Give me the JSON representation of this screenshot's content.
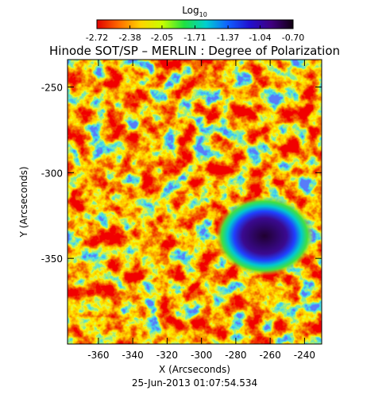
{
  "chart_data": {
    "type": "image",
    "title": "Hinode SOT/SP – MERLIN : Degree of Polarization",
    "colorbar": {
      "label": "Log",
      "label_subscript": "10",
      "clim": [
        -2.72,
        -0.7
      ],
      "ticks": [
        -2.72,
        -2.38,
        -2.05,
        -1.71,
        -1.37,
        -1.04,
        {
          "value": -0.7,
          "label": "-0.70"
        }
      ],
      "colormap": [
        "#e00000",
        "#ff6a00",
        "#ffd400",
        "#c8ff00",
        "#20e040",
        "#00d0d0",
        "#1060ff",
        "#2010d0",
        "#400080",
        "#100010"
      ]
    },
    "x_label": "X (Arcseconds)",
    "y_label": "Y (Arcseconds)",
    "xlim": [
      -378,
      -230
    ],
    "ylim": [
      -400,
      -234
    ],
    "xticks": [
      -360,
      -340,
      -320,
      -300,
      -280,
      -260,
      -240
    ],
    "yticks": [
      -350,
      -300,
      -250
    ],
    "footer": "25-Jun-2013 01:07:54.534"
  }
}
